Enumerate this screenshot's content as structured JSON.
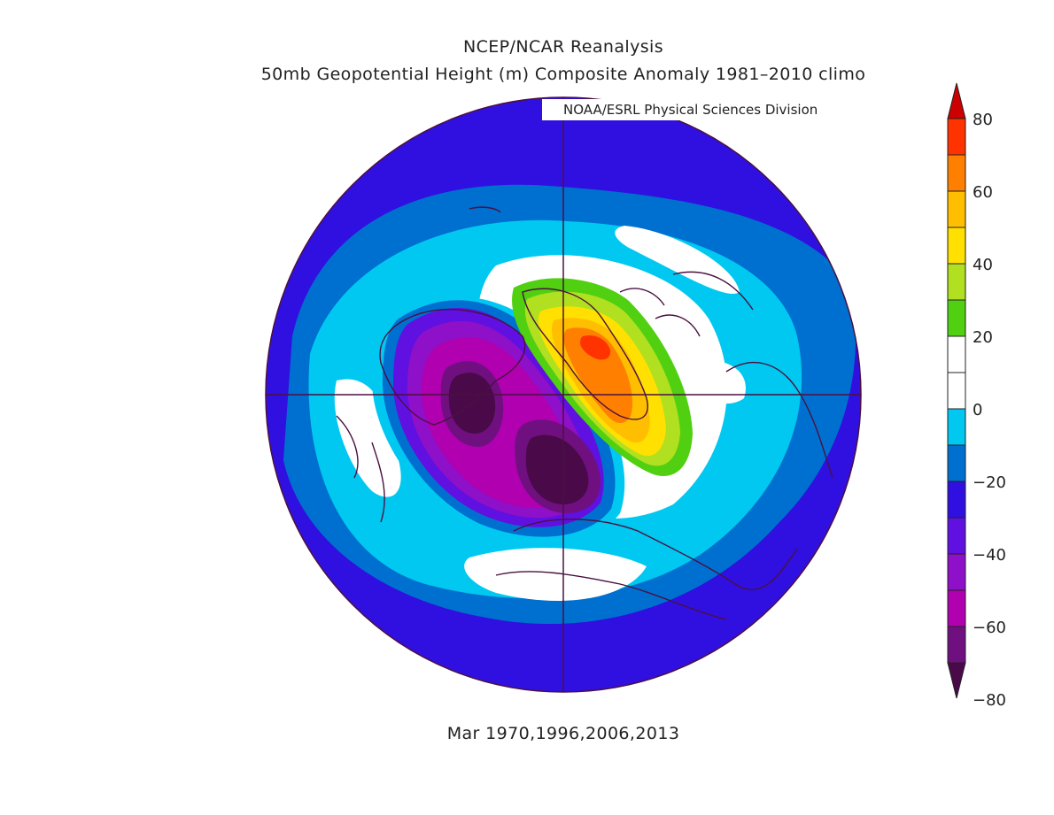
{
  "header": {
    "title": "NCEP/NCAR Reanalysis",
    "subtitle": "50mb Geopotential Height (m) Composite Anomaly 1981–2010 climo",
    "credit": "NOAA/ESRL Physical Sciences Division"
  },
  "footer": {
    "period": "Mar 1970,1996,2006,2013"
  },
  "colorbar": {
    "labels": [
      "80",
      "60",
      "40",
      "20",
      "0",
      "−20",
      "−40",
      "−60",
      "−80"
    ],
    "colors": [
      "#cc0000",
      "#ff3300",
      "#ff8000",
      "#ffbf00",
      "#ffe000",
      "#b0e020",
      "#50d010",
      "#ffffff",
      "#ffffff",
      "#00c8f0",
      "#0070d0",
      "#3010e0",
      "#6010e0",
      "#8e10c8",
      "#b000b0",
      "#701080",
      "#4a0a4a"
    ]
  },
  "map": {
    "projection": "north-polar-stereographic",
    "colors": {
      "ring_outer": "#3010e0",
      "ring_mid": "#0070d0",
      "ring_light": "#00c8f0",
      "white": "#ffffff",
      "green": "#50d010",
      "yellowgreen": "#b0e020",
      "yellow": "#ffe000",
      "gold": "#ffbf00",
      "orange": "#ff8000",
      "red": "#ff3300",
      "purple1": "#6010e0",
      "purple2": "#8e10c8",
      "purple3": "#b000b0",
      "purple4": "#701080",
      "purple5": "#4a0a4a",
      "coast": "#4a1040"
    }
  }
}
